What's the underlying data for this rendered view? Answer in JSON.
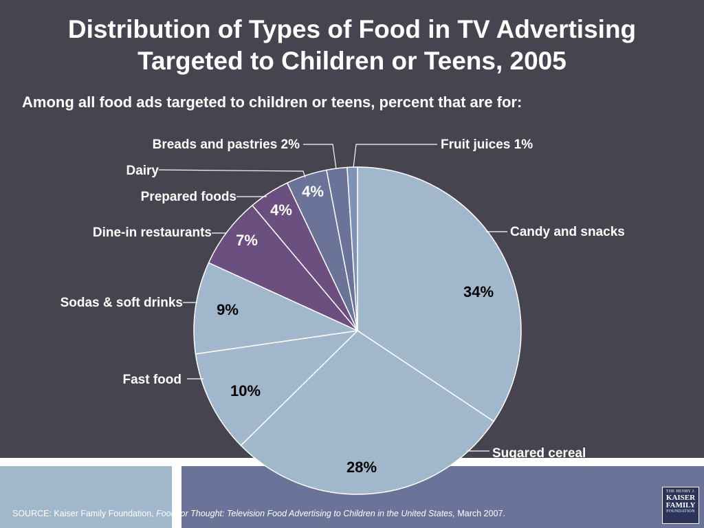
{
  "header": {
    "title_line1": "Distribution of Types of Food in TV Advertising",
    "title_line2": "Targeted to Children or Teens, 2005",
    "subtitle": "Among all food ads targeted to children or teens, percent that are for:"
  },
  "footer": {
    "source_prefix": "SOURCE: Kaiser Family Foundation, ",
    "source_title": "Food for Thought: Television Food Advertising to Children in the United States,",
    "source_suffix": " March 2007.",
    "logo_line1": "THE HENRY J.",
    "logo_line2": "KAISER",
    "logo_line3": "FAMILY",
    "logo_line4": "FOUNDATION"
  },
  "colors": {
    "background": "#46454f",
    "slice_light": "#a1b7cc",
    "slice_purple": "#6b4f7f",
    "slice_slate": "#6b7399",
    "slice_blue": "#8092b8"
  },
  "chart_data": {
    "type": "pie",
    "title": "Distribution of Types of Food in TV Advertising Targeted to Children or Teens, 2005",
    "subtitle": "Among all food ads targeted to children or teens, percent that are for:",
    "slices": [
      {
        "label": "Candy and snacks",
        "value": 34,
        "value_label": "34%",
        "color": "#a1b7cc"
      },
      {
        "label": "Sugared cereal",
        "value": 28,
        "value_label": "28%",
        "color": "#a1b7cc"
      },
      {
        "label": "Fast food",
        "value": 10,
        "value_label": "10%",
        "color": "#a1b7cc"
      },
      {
        "label": "Sodas & soft drinks",
        "value": 9,
        "value_label": "9%",
        "color": "#a1b7cc"
      },
      {
        "label": "Dine-in restaurants",
        "value": 7,
        "value_label": "7%",
        "color": "#6b4f7f"
      },
      {
        "label": "Prepared foods",
        "value": 4,
        "value_label": "4%",
        "color": "#6b4f7f"
      },
      {
        "label": "Dairy",
        "value": 4,
        "value_label": "4%",
        "color": "#6b7399"
      },
      {
        "label": "Breads and pastries  2%",
        "value": 2,
        "value_label": "",
        "color": "#6b7399"
      },
      {
        "label": "Fruit juices  1%",
        "value": 1,
        "value_label": "",
        "color": "#8092b8"
      }
    ],
    "start_angle_deg": 0,
    "direction": "clockwise"
  }
}
